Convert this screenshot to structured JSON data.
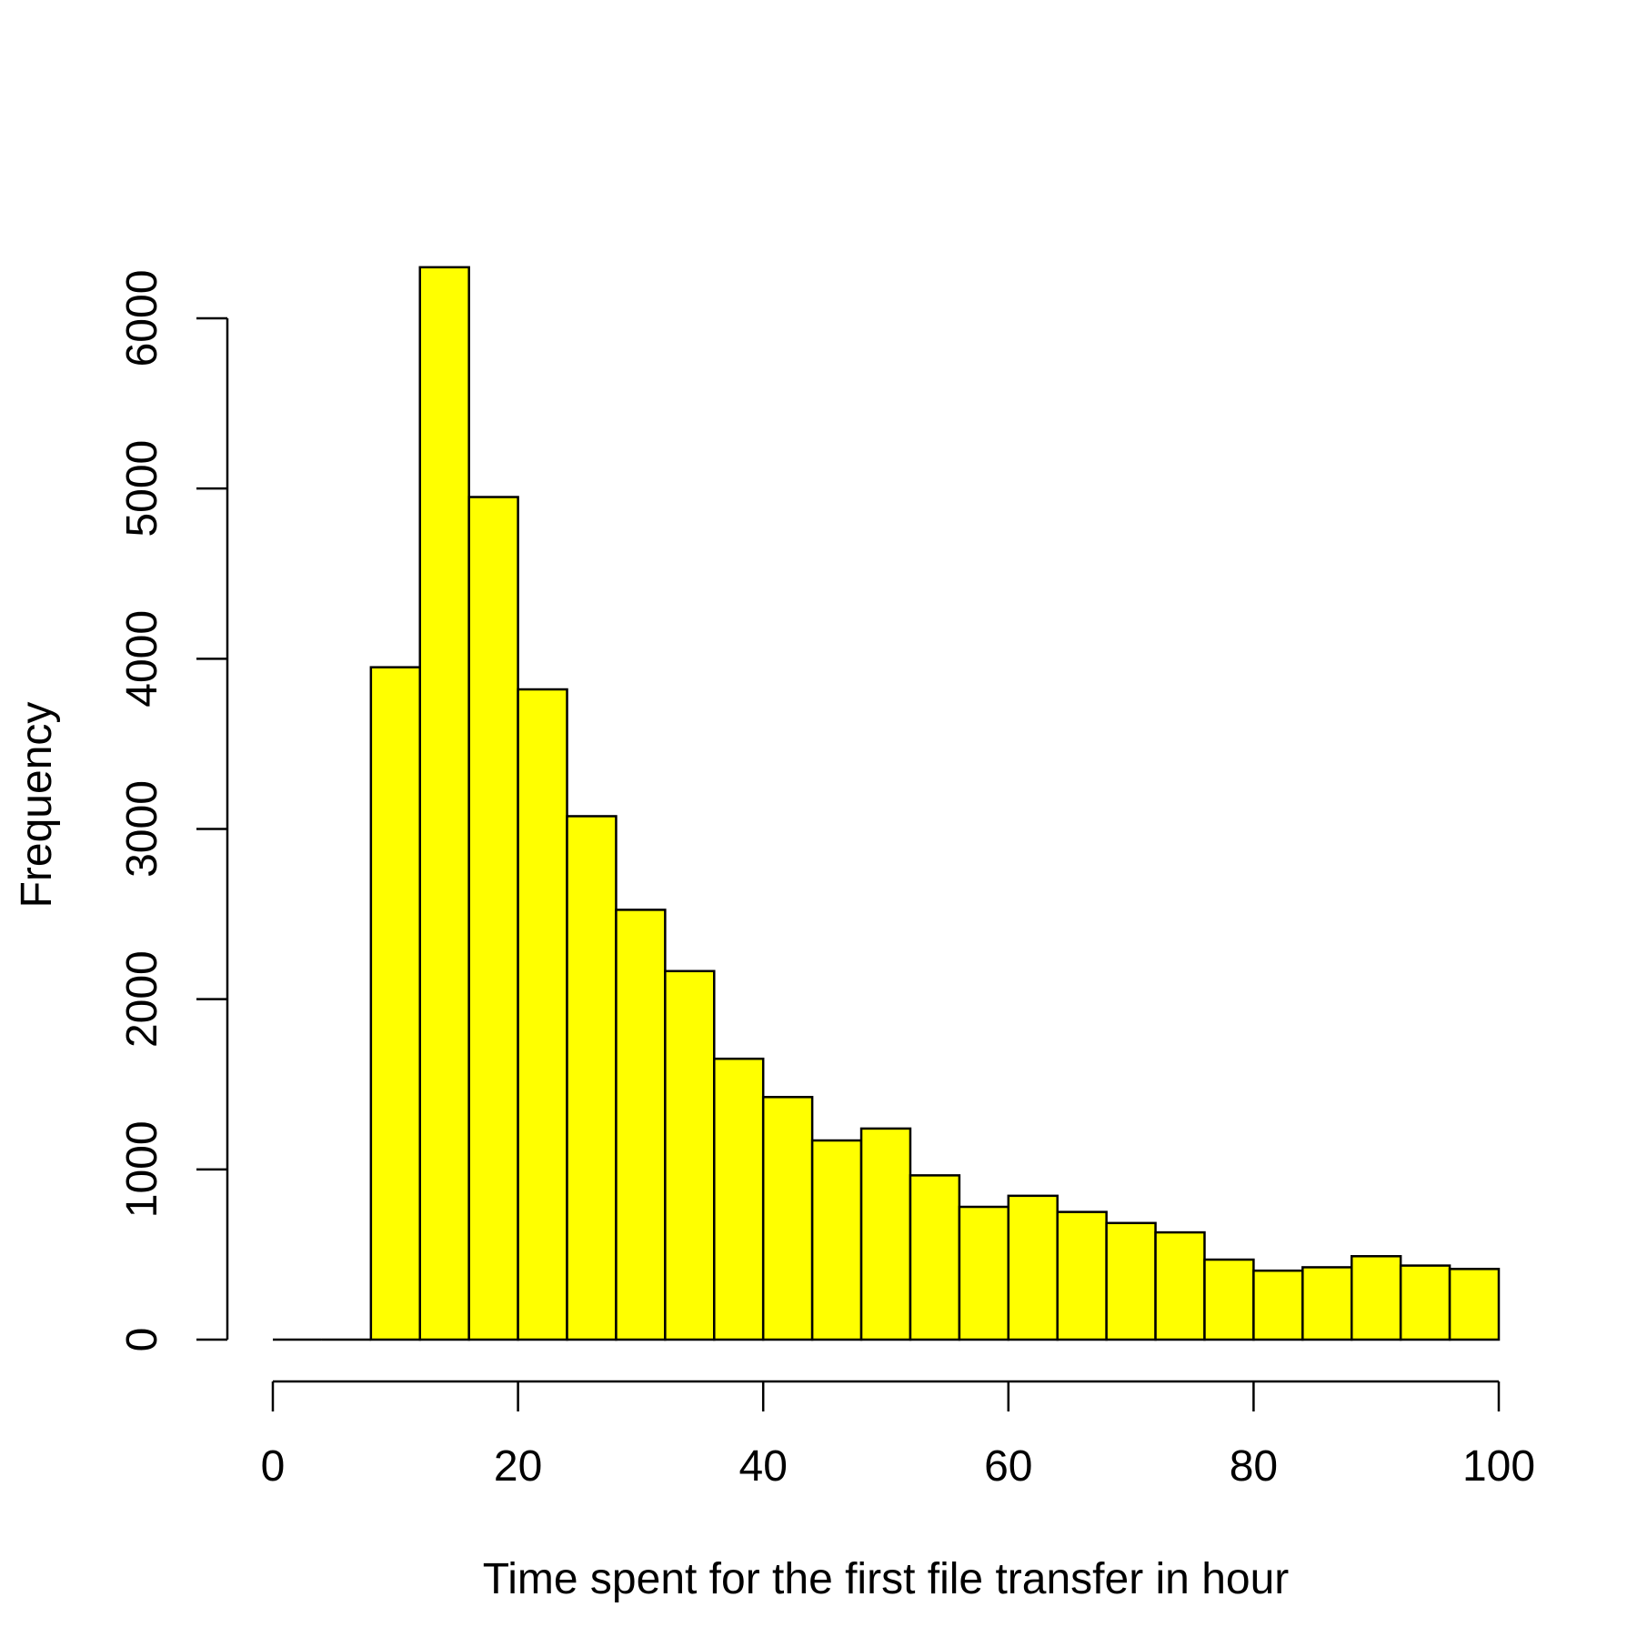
{
  "chart_data": {
    "type": "bar",
    "title": "",
    "xlabel": "Time spent for the first file transfer in hour",
    "ylabel": "Frequency",
    "xlim": [
      0,
      100
    ],
    "ylim": [
      0,
      6300
    ],
    "x_ticks": [
      0,
      20,
      40,
      60,
      80,
      100
    ],
    "y_ticks": [
      0,
      1000,
      2000,
      3000,
      4000,
      5000,
      6000
    ],
    "bin_edges": [
      0,
      4,
      8,
      12,
      16,
      20,
      24,
      28,
      32,
      36,
      40,
      44,
      48,
      52,
      56,
      60,
      64,
      68,
      72,
      76,
      80,
      84,
      88,
      92,
      96,
      100
    ],
    "values": [
      0,
      0,
      3950,
      6300,
      4950,
      3820,
      3075,
      2525,
      2165,
      1650,
      1425,
      1170,
      1240,
      965,
      780,
      845,
      750,
      685,
      630,
      470,
      405,
      425,
      490,
      435,
      415
    ],
    "grid": false,
    "bar_color": "#FFFF00",
    "edge_color": "#000000",
    "legend": "none"
  }
}
